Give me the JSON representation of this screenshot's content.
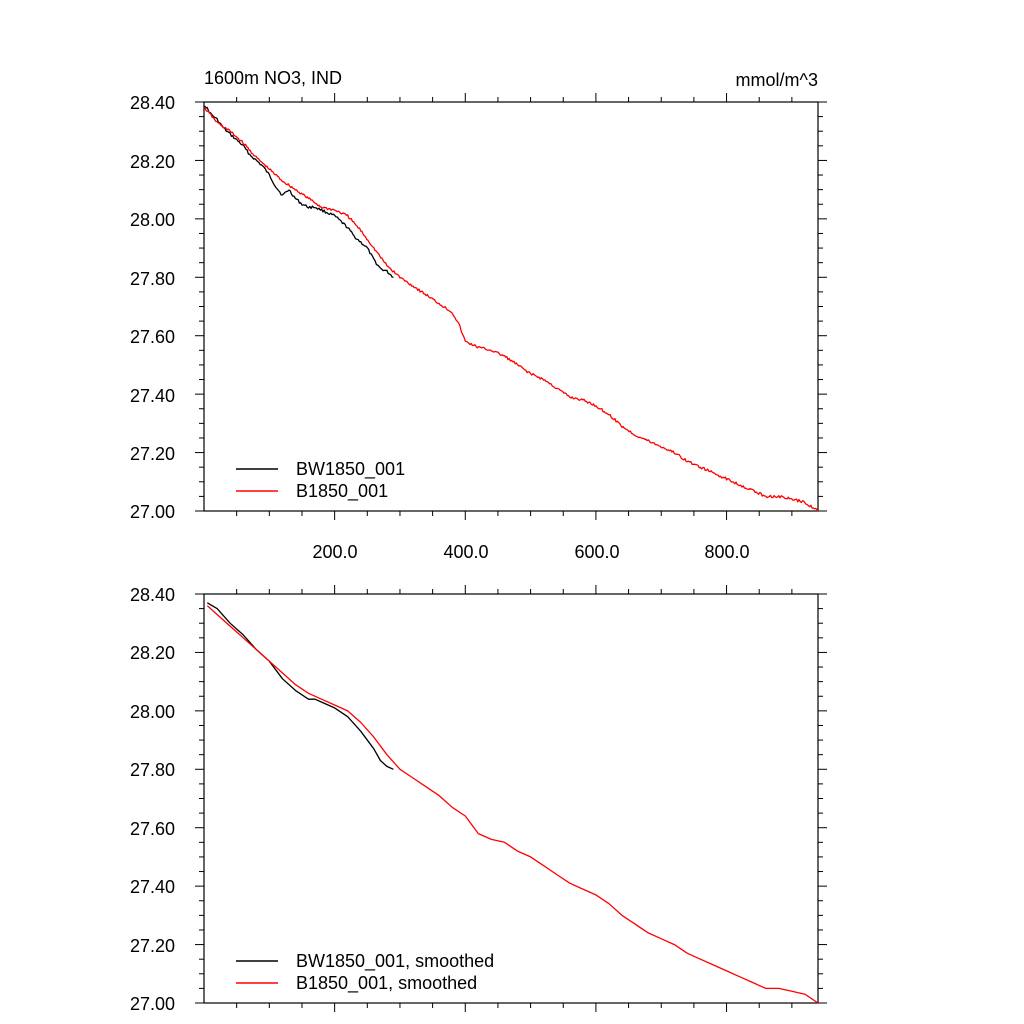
{
  "chart_data": [
    {
      "type": "line",
      "title": "1600m NO3, IND",
      "units": "mmol/m^3",
      "xlim": [
        0,
        940
      ],
      "ylim": [
        27.0,
        28.4
      ],
      "yticks": [
        "28.40",
        "28.20",
        "28.00",
        "27.80",
        "27.60",
        "27.40",
        "27.20",
        "27.00"
      ],
      "xticks": [
        "200.0",
        "400.0",
        "600.0",
        "800.0"
      ],
      "legend_position": "bottom-left",
      "series": [
        {
          "name": "BW1850_001",
          "color": "#000000",
          "x": [
            1,
            10,
            20,
            30,
            40,
            50,
            60,
            70,
            80,
            90,
            100,
            110,
            120,
            130,
            140,
            150,
            160,
            170,
            180,
            190,
            200,
            210,
            220,
            230,
            240,
            250,
            260,
            270,
            280,
            290
          ],
          "y": [
            28.39,
            28.36,
            28.34,
            28.31,
            28.29,
            28.27,
            28.25,
            28.22,
            28.2,
            28.18,
            28.15,
            28.11,
            28.08,
            28.1,
            28.07,
            28.05,
            28.04,
            28.04,
            28.03,
            28.02,
            28.01,
            27.99,
            27.97,
            27.94,
            27.92,
            27.9,
            27.86,
            27.83,
            27.82,
            27.8
          ]
        },
        {
          "name": "B1850_001",
          "color": "#ff0000",
          "x": [
            1,
            20,
            40,
            60,
            80,
            100,
            120,
            140,
            160,
            180,
            200,
            220,
            240,
            260,
            280,
            300,
            320,
            340,
            360,
            380,
            390,
            400,
            420,
            440,
            460,
            480,
            500,
            520,
            540,
            560,
            580,
            600,
            620,
            640,
            660,
            680,
            700,
            720,
            740,
            760,
            780,
            800,
            820,
            840,
            860,
            880,
            900,
            920,
            940
          ],
          "y": [
            28.38,
            28.33,
            28.3,
            28.26,
            28.21,
            28.17,
            28.13,
            28.1,
            28.07,
            28.04,
            28.03,
            28.01,
            27.96,
            27.9,
            27.84,
            27.8,
            27.77,
            27.74,
            27.71,
            27.68,
            27.64,
            27.58,
            27.56,
            27.55,
            27.53,
            27.5,
            27.47,
            27.45,
            27.42,
            27.39,
            27.38,
            27.36,
            27.33,
            27.29,
            27.26,
            27.24,
            27.22,
            27.2,
            27.17,
            27.15,
            27.13,
            27.11,
            27.09,
            27.07,
            27.05,
            27.05,
            27.04,
            27.03,
            27.0
          ]
        }
      ]
    },
    {
      "type": "line",
      "xlim": [
        0,
        940
      ],
      "ylim": [
        27.0,
        28.4
      ],
      "yticks": [
        "28.40",
        "28.20",
        "28.00",
        "27.80",
        "27.60",
        "27.40",
        "27.20",
        "27.00"
      ],
      "legend_position": "bottom-left",
      "series": [
        {
          "name": "BW1850_001, smoothed",
          "color": "#000000",
          "x": [
            5,
            20,
            40,
            60,
            80,
            100,
            120,
            140,
            160,
            170,
            180,
            200,
            220,
            240,
            260,
            270,
            280,
            290
          ],
          "y": [
            28.37,
            28.35,
            28.3,
            28.26,
            28.21,
            28.17,
            28.11,
            28.07,
            28.04,
            28.04,
            28.03,
            28.01,
            27.98,
            27.93,
            27.87,
            27.83,
            27.81,
            27.8
          ]
        },
        {
          "name": "B1850_001, smoothed",
          "color": "#ff0000",
          "x": [
            5,
            20,
            40,
            60,
            80,
            100,
            120,
            140,
            160,
            180,
            200,
            220,
            240,
            260,
            280,
            300,
            320,
            340,
            360,
            380,
            400,
            420,
            440,
            460,
            480,
            500,
            520,
            540,
            560,
            580,
            600,
            620,
            640,
            660,
            680,
            700,
            720,
            740,
            760,
            780,
            800,
            820,
            840,
            860,
            880,
            900,
            920,
            940
          ],
          "y": [
            28.36,
            28.33,
            28.29,
            28.25,
            28.21,
            28.17,
            28.13,
            28.09,
            28.06,
            28.04,
            28.02,
            28.0,
            27.96,
            27.91,
            27.85,
            27.8,
            27.77,
            27.74,
            27.71,
            27.67,
            27.64,
            27.58,
            27.56,
            27.55,
            27.52,
            27.5,
            27.47,
            27.44,
            27.41,
            27.39,
            27.37,
            27.34,
            27.3,
            27.27,
            27.24,
            27.22,
            27.2,
            27.17,
            27.15,
            27.13,
            27.11,
            27.09,
            27.07,
            27.05,
            27.05,
            27.04,
            27.03,
            27.0
          ]
        }
      ]
    }
  ]
}
